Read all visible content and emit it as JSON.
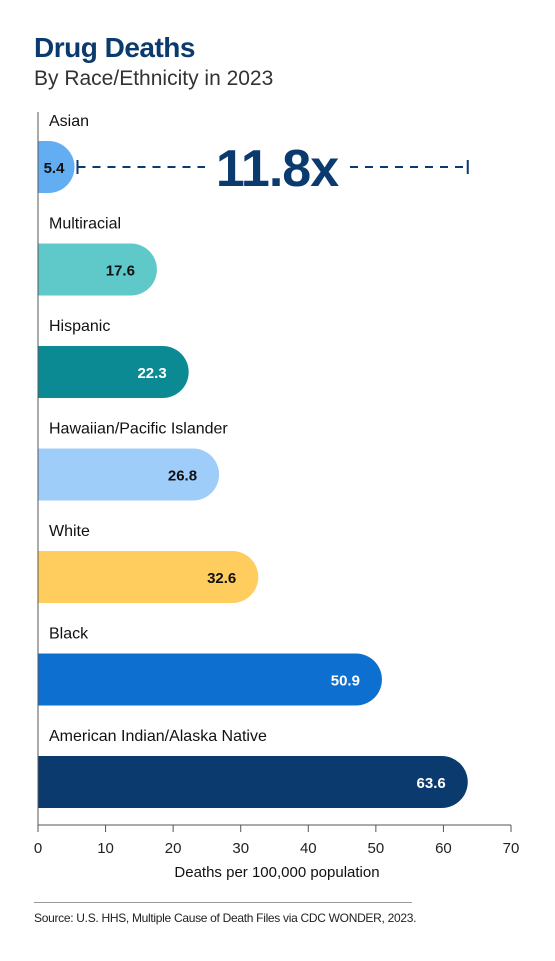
{
  "title": "Drug Deaths",
  "subtitle": "By Race/Ethnicity in 2023",
  "source": "Source: U.S. HHS, Multiple Cause of Death Files via CDC WONDER, 2023.",
  "chart_data": {
    "type": "bar",
    "orientation": "horizontal",
    "categories": [
      "Asian",
      "Multiracial",
      "Hispanic",
      "Hawaiian/Pacific Islander",
      "White",
      "Black",
      "American Indian/Alaska Native"
    ],
    "values": [
      5.4,
      17.6,
      22.3,
      26.8,
      32.6,
      50.9,
      63.6
    ],
    "value_labels": [
      "5.4",
      "17.6",
      "22.3",
      "26.8",
      "32.6",
      "50.9",
      "63.6"
    ],
    "colors": [
      "#63adf2",
      "#5fc8c8",
      "#0b8a93",
      "#9fcdfa",
      "#ffcd5e",
      "#0d6fcf",
      "#0b3a6e"
    ],
    "label_colors": [
      "#111111",
      "#111111",
      "#ffffff",
      "#111111",
      "#111111",
      "#ffffff",
      "#ffffff"
    ],
    "xlabel": "Deaths per 100,000 population",
    "xlim": [
      0,
      70
    ],
    "xticks": [
      0,
      10,
      20,
      30,
      40,
      50,
      60,
      70
    ],
    "annotation": {
      "text": "11.8x",
      "from": 5.4,
      "to": 63.6,
      "color": "#0b3a6e"
    }
  }
}
